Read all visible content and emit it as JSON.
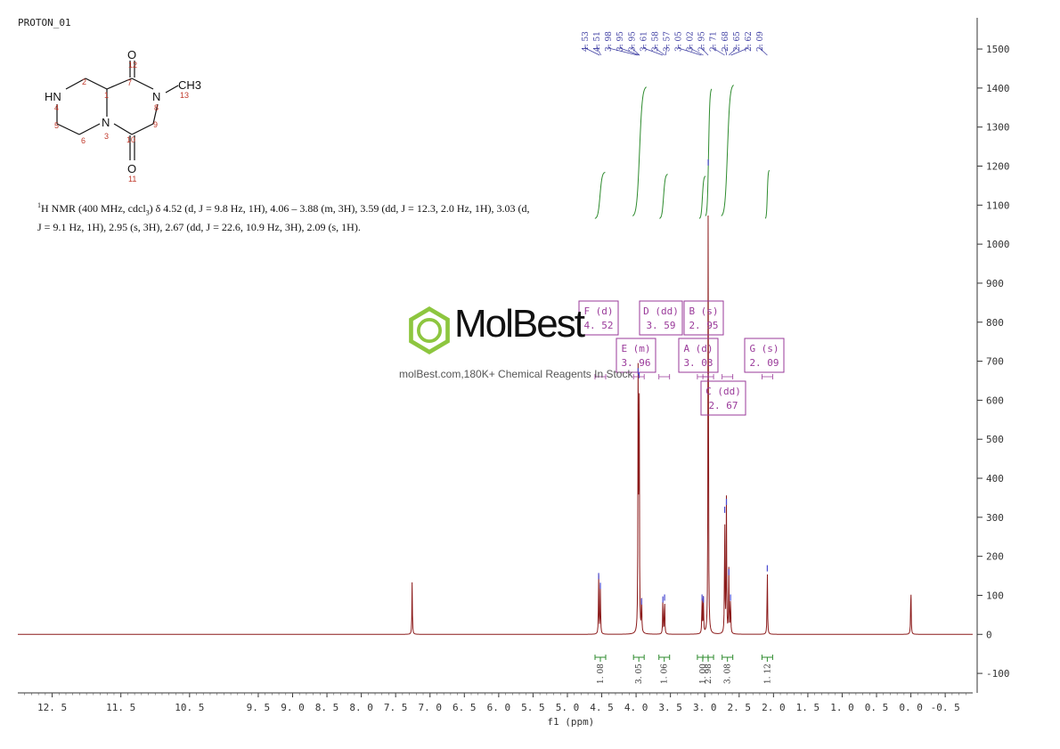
{
  "experiment_name": "PROTON_01",
  "description": {
    "nucleus_sup": "1",
    "text": "H NMR (400 MHz, cdcl",
    "sub": "3",
    "rest": ") δ 4.52 (d, J = 9.8 Hz, 1H), 4.06 – 3.88 (m, 3H), 3.59 (dd, J = 12.3, 2.0 Hz, 1H), 3.03 (d, J = 9.1 Hz, 1H), 2.95 (s, 3H), 2.67 (dd, J = 22.6, 10.9 Hz, 3H), 2.09 (s, 1H)."
  },
  "watermark": {
    "brand": "MolBest",
    "tagline": "molBest.com,180K+ Chemical Reagents In Stock",
    "icon": "benzene-ring-icon",
    "color": "#8dc63f"
  },
  "structure": {
    "atoms": [
      "HN",
      "N",
      "N",
      "O",
      "O",
      "CH3"
    ],
    "numbers": [
      "1",
      "2",
      "3",
      "4",
      "5",
      "6",
      "7",
      "8",
      "9",
      "10",
      "11",
      "12",
      "13"
    ]
  },
  "chart_data": {
    "type": "line",
    "xlabel": "f1 (ppm)",
    "x_reversed": true,
    "xlim": [
      13.0,
      -0.9
    ],
    "ylim": [
      -150,
      1580
    ],
    "x_ticks": [
      "12.5",
      "11.5",
      "10.5",
      "9.5",
      "9.0",
      "8.5",
      "8.0",
      "7.5",
      "7.0",
      "6.5",
      "6.0",
      "5.5",
      "5.0",
      "4.5",
      "4.0",
      "3.5",
      "3.0",
      "2.5",
      "2.0",
      "1.5",
      "1.0",
      "0.5",
      "0.0",
      "-0.5"
    ],
    "y_ticks": [
      "-100",
      "0",
      "100",
      "200",
      "300",
      "400",
      "500",
      "600",
      "700",
      "800",
      "900",
      "1000",
      "1100",
      "1200",
      "1300",
      "1400",
      "1500"
    ],
    "line_color": "#8b1a1a",
    "integral_color": "#2e8b2e",
    "label_color": "#9a3a9a",
    "peaks": [
      {
        "ppm": 7.26,
        "height": 135
      },
      {
        "ppm": 4.545,
        "height": 155
      },
      {
        "ppm": 4.52,
        "height": 130
      },
      {
        "ppm": 3.97,
        "height": 680
      },
      {
        "ppm": 3.955,
        "height": 670
      },
      {
        "ppm": 3.92,
        "height": 90
      },
      {
        "ppm": 3.61,
        "height": 95
      },
      {
        "ppm": 3.585,
        "height": 100
      },
      {
        "ppm": 3.04,
        "height": 100
      },
      {
        "ppm": 3.02,
        "height": 95
      },
      {
        "ppm": 2.95,
        "height": 1215
      },
      {
        "ppm": 2.71,
        "height": 325
      },
      {
        "ppm": 2.685,
        "height": 345
      },
      {
        "ppm": 2.65,
        "height": 165
      },
      {
        "ppm": 2.625,
        "height": 100
      },
      {
        "ppm": 2.09,
        "height": 175
      },
      {
        "ppm": 0.0,
        "height": 135
      }
    ],
    "peak_labels_top": [
      "4.53",
      "4.51",
      "3.98",
      "3.95",
      "3.95",
      "3.61",
      "3.58",
      "3.57",
      "3.05",
      "3.02",
      "2.95",
      "2.71",
      "2.68",
      "2.65",
      "2.62",
      "2.09"
    ],
    "multiplets": [
      {
        "label": "F (d)",
        "value": "4.52",
        "ppm": 4.52,
        "integral": "1.08"
      },
      {
        "label": "E (m)",
        "value": "3.96",
        "ppm": 3.96,
        "integral": "3.05"
      },
      {
        "label": "D (dd)",
        "value": "3.59",
        "ppm": 3.59,
        "integral": "1.06"
      },
      {
        "label": "A (d)",
        "value": "3.03",
        "ppm": 3.03,
        "integral": "1.00"
      },
      {
        "label": "B (s)",
        "value": "2.95",
        "ppm": 2.95,
        "integral": "2.98"
      },
      {
        "label": "C (dd)",
        "value": "2.67",
        "ppm": 2.67,
        "integral": "3.08"
      },
      {
        "label": "G (s)",
        "value": "2.09",
        "ppm": 2.09,
        "integral": "1.12"
      }
    ],
    "integral_curves": [
      {
        "from": 4.6,
        "to": 4.45,
        "ymin": 1065,
        "ymax": 1185
      },
      {
        "from": 4.05,
        "to": 3.85,
        "ymin": 1070,
        "ymax": 1405
      },
      {
        "from": 3.66,
        "to": 3.54,
        "ymin": 1065,
        "ymax": 1180
      },
      {
        "from": 3.08,
        "to": 2.99,
        "ymin": 1065,
        "ymax": 1175
      },
      {
        "from": 2.99,
        "to": 2.9,
        "ymin": 1070,
        "ymax": 1400
      },
      {
        "from": 2.76,
        "to": 2.58,
        "ymin": 1070,
        "ymax": 1410
      },
      {
        "from": 2.12,
        "to": 2.06,
        "ymin": 1065,
        "ymax": 1190
      }
    ]
  }
}
